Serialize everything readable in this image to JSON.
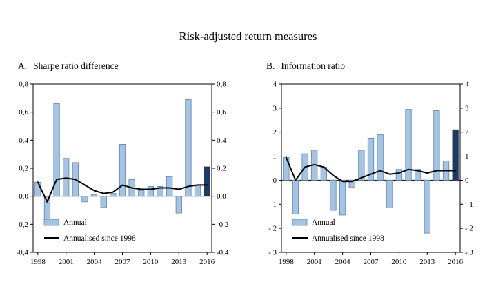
{
  "title": "Risk-adjusted return measures",
  "chart_data": [
    {
      "type": "bar+line",
      "panel_label": "A.",
      "title": "Sharpe ratio difference",
      "x": [
        1998,
        1999,
        2000,
        2001,
        2002,
        2003,
        2004,
        2005,
        2006,
        2007,
        2008,
        2009,
        2010,
        2011,
        2012,
        2013,
        2014,
        2015,
        2016
      ],
      "series": [
        {
          "name": "Annual",
          "type": "bar",
          "values": [
            0.1,
            -0.18,
            0.66,
            0.27,
            0.24,
            -0.04,
            0.01,
            -0.08,
            0.02,
            0.37,
            0.12,
            0.04,
            0.07,
            0.07,
            0.14,
            -0.12,
            0.69,
            0.08,
            0.21
          ]
        },
        {
          "name": "Annualised since 1998",
          "type": "line",
          "values": [
            0.1,
            -0.04,
            0.12,
            0.13,
            0.12,
            0.08,
            0.04,
            0.02,
            0.03,
            0.08,
            0.06,
            0.05,
            0.05,
            0.06,
            0.06,
            0.05,
            0.07,
            0.08,
            0.08
          ]
        }
      ],
      "ylim": [
        -0.4,
        0.8
      ],
      "yticks": {
        "values": [
          0.8,
          0.6,
          0.4,
          0.2,
          0.0,
          -0.2,
          -0.4
        ],
        "labels": [
          "0,8",
          "0,6",
          "0,4",
          "0,2",
          "0,0",
          "-0,2",
          "-0,4"
        ]
      },
      "xtick_indices": [
        0,
        3,
        6,
        9,
        12,
        15,
        18
      ],
      "xtick_labels": [
        "1998",
        "2001",
        "2004",
        "2007",
        "2010",
        "2013",
        "2016"
      ],
      "highlight_last_bar": true,
      "grid": false,
      "legend_position": "bottom-left",
      "legend": [
        "Annual",
        "Annualised since 1998"
      ],
      "colors": {
        "bar": "#a6c3e1",
        "bar_border": "#5b84ad",
        "bar_last": "#1f3a61",
        "line": "#000000",
        "axis": "#000000"
      }
    },
    {
      "type": "bar+line",
      "panel_label": "B.",
      "title": "Information ratio",
      "x": [
        1998,
        1999,
        2000,
        2001,
        2002,
        2003,
        2004,
        2005,
        2006,
        2007,
        2008,
        2009,
        2010,
        2011,
        2012,
        2013,
        2014,
        2015,
        2016
      ],
      "series": [
        {
          "name": "Annual",
          "type": "bar",
          "values": [
            0.95,
            -1.4,
            1.1,
            1.25,
            0.55,
            -1.25,
            -1.45,
            -0.3,
            1.25,
            1.75,
            1.9,
            -1.15,
            0.45,
            2.95,
            0.45,
            -2.2,
            2.9,
            0.8,
            2.1
          ]
        },
        {
          "name": "Annualised since 1998",
          "type": "line",
          "values": [
            0.95,
            0.0,
            0.55,
            0.65,
            0.55,
            0.2,
            -0.05,
            -0.05,
            0.1,
            0.25,
            0.4,
            0.25,
            0.3,
            0.45,
            0.4,
            0.3,
            0.4,
            0.4,
            0.4
          ]
        }
      ],
      "ylim": [
        -3,
        4
      ],
      "yticks": {
        "values": [
          4,
          3,
          2,
          1,
          0,
          -1,
          -2,
          -3
        ],
        "labels": [
          "4",
          "3",
          "2",
          "1",
          "0",
          "- 1",
          "- 2",
          "- 3"
        ]
      },
      "xtick_indices": [
        0,
        3,
        6,
        9,
        12,
        15,
        18
      ],
      "xtick_labels": [
        "1998",
        "2001",
        "2004",
        "2007",
        "2010",
        "2013",
        "2016"
      ],
      "highlight_last_bar": true,
      "grid": false,
      "legend_position": "bottom-left",
      "legend": [
        "Annual",
        "Annualised since 1998"
      ],
      "colors": {
        "bar": "#a6c3e1",
        "bar_border": "#5b84ad",
        "bar_last": "#1f3a61",
        "line": "#000000",
        "axis": "#000000"
      }
    }
  ]
}
